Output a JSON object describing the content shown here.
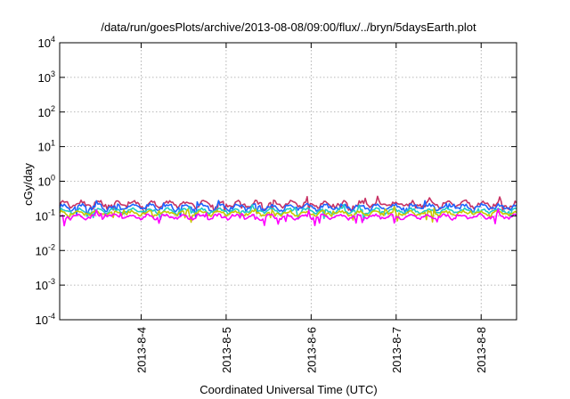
{
  "chart_data": {
    "type": "line",
    "title": "/data/run/goesPlots/archive/2013-08-08/09:00/flux/../bryn/5daysEarth.plot",
    "xlabel": "Coordinated Universal Time (UTC)",
    "ylabel": "cGy/day",
    "y_scale": "log",
    "ylim": [
      0.0001,
      10000
    ],
    "y_ticks": [
      {
        "value": 0.0001,
        "base": "10",
        "exp": "-4"
      },
      {
        "value": 0.001,
        "base": "10",
        "exp": "-3"
      },
      {
        "value": 0.01,
        "base": "10",
        "exp": "-2"
      },
      {
        "value": 0.1,
        "base": "10",
        "exp": "-1"
      },
      {
        "value": 1,
        "base": "10",
        "exp": "0"
      },
      {
        "value": 10,
        "base": "10",
        "exp": "1"
      },
      {
        "value": 100,
        "base": "10",
        "exp": "2"
      },
      {
        "value": 1000,
        "base": "10",
        "exp": "3"
      },
      {
        "value": 10000,
        "base": "10",
        "exp": "4"
      }
    ],
    "x_range": [
      "2013-08-03 01:00",
      "2013-08-08 10:00"
    ],
    "x_ticks": [
      "2013-8-4",
      "2013-8-5",
      "2013-8-6",
      "2013-8-7",
      "2013-8-8"
    ],
    "grid": true,
    "legend": "none",
    "series": [
      {
        "color": "#c83264",
        "level": 0.22,
        "amp": 0.16
      },
      {
        "color": "#1e64ff",
        "level": 0.18,
        "amp": 0.15
      },
      {
        "color": "#1ecbc8",
        "level": 0.14,
        "amp": 0.12
      },
      {
        "color": "#c8c800",
        "level": 0.12,
        "amp": 0.11
      },
      {
        "color": "#ff00ff",
        "level": 0.095,
        "amp": 0.12
      }
    ]
  }
}
